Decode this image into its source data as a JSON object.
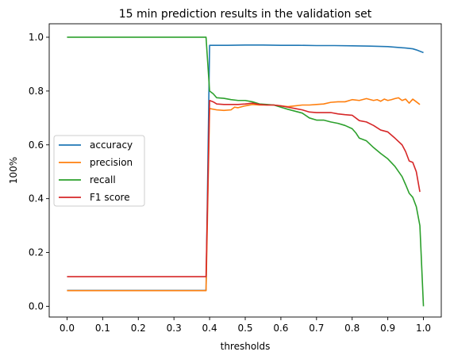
{
  "chart_data": {
    "type": "line",
    "title": "15 min prediction results in the validation set",
    "xlabel": "thresholds",
    "ylabel": "100%",
    "xlim": [
      -0.05,
      1.05
    ],
    "ylim": [
      -0.04,
      1.05
    ],
    "xticks": [
      0.0,
      0.1,
      0.2,
      0.3,
      0.4,
      0.5,
      0.6,
      0.7,
      0.8,
      0.9,
      1.0
    ],
    "xtick_labels": [
      "0.0",
      "0.1",
      "0.2",
      "0.3",
      "0.4",
      "0.5",
      "0.6",
      "0.7",
      "0.8",
      "0.9",
      "1.0"
    ],
    "yticks": [
      0.0,
      0.2,
      0.4,
      0.6,
      0.8,
      1.0
    ],
    "ytick_labels": [
      "0.0",
      "0.2",
      "0.4",
      "0.6",
      "0.8",
      "1.0"
    ],
    "grid": false,
    "legend_position": "center-left",
    "series": [
      {
        "name": "accuracy",
        "color": "#1f77b4",
        "points": [
          [
            0.0,
            0.059
          ],
          [
            0.39,
            0.059
          ],
          [
            0.4,
            0.97
          ],
          [
            0.45,
            0.97
          ],
          [
            0.5,
            0.971
          ],
          [
            0.55,
            0.971
          ],
          [
            0.6,
            0.97
          ],
          [
            0.65,
            0.97
          ],
          [
            0.7,
            0.969
          ],
          [
            0.75,
            0.969
          ],
          [
            0.8,
            0.968
          ],
          [
            0.85,
            0.967
          ],
          [
            0.9,
            0.965
          ],
          [
            0.95,
            0.96
          ],
          [
            0.97,
            0.957
          ],
          [
            0.98,
            0.953
          ],
          [
            1.0,
            0.943
          ]
        ]
      },
      {
        "name": "precision",
        "color": "#ff7f0e",
        "points": [
          [
            0.0,
            0.058
          ],
          [
            0.39,
            0.058
          ],
          [
            0.4,
            0.735
          ],
          [
            0.42,
            0.73
          ],
          [
            0.44,
            0.728
          ],
          [
            0.46,
            0.73
          ],
          [
            0.47,
            0.74
          ],
          [
            0.48,
            0.738
          ],
          [
            0.5,
            0.745
          ],
          [
            0.52,
            0.75
          ],
          [
            0.54,
            0.748
          ],
          [
            0.56,
            0.748
          ],
          [
            0.58,
            0.748
          ],
          [
            0.6,
            0.745
          ],
          [
            0.62,
            0.742
          ],
          [
            0.64,
            0.745
          ],
          [
            0.66,
            0.748
          ],
          [
            0.68,
            0.748
          ],
          [
            0.7,
            0.75
          ],
          [
            0.72,
            0.752
          ],
          [
            0.74,
            0.758
          ],
          [
            0.76,
            0.76
          ],
          [
            0.78,
            0.76
          ],
          [
            0.8,
            0.768
          ],
          [
            0.82,
            0.765
          ],
          [
            0.84,
            0.772
          ],
          [
            0.86,
            0.765
          ],
          [
            0.87,
            0.768
          ],
          [
            0.88,
            0.762
          ],
          [
            0.89,
            0.77
          ],
          [
            0.9,
            0.765
          ],
          [
            0.91,
            0.768
          ],
          [
            0.92,
            0.772
          ],
          [
            0.93,
            0.775
          ],
          [
            0.94,
            0.765
          ],
          [
            0.95,
            0.77
          ],
          [
            0.96,
            0.755
          ],
          [
            0.97,
            0.77
          ],
          [
            0.98,
            0.76
          ],
          [
            0.99,
            0.75
          ]
        ]
      },
      {
        "name": "recall",
        "color": "#2ca02c",
        "points": [
          [
            0.0,
            1.0
          ],
          [
            0.39,
            1.0
          ],
          [
            0.4,
            0.8
          ],
          [
            0.41,
            0.79
          ],
          [
            0.42,
            0.775
          ],
          [
            0.44,
            0.773
          ],
          [
            0.46,
            0.768
          ],
          [
            0.48,
            0.765
          ],
          [
            0.5,
            0.765
          ],
          [
            0.52,
            0.76
          ],
          [
            0.54,
            0.752
          ],
          [
            0.56,
            0.75
          ],
          [
            0.58,
            0.748
          ],
          [
            0.6,
            0.74
          ],
          [
            0.62,
            0.732
          ],
          [
            0.64,
            0.725
          ],
          [
            0.66,
            0.718
          ],
          [
            0.68,
            0.7
          ],
          [
            0.7,
            0.692
          ],
          [
            0.72,
            0.692
          ],
          [
            0.74,
            0.685
          ],
          [
            0.76,
            0.68
          ],
          [
            0.78,
            0.672
          ],
          [
            0.8,
            0.66
          ],
          [
            0.81,
            0.645
          ],
          [
            0.82,
            0.625
          ],
          [
            0.84,
            0.615
          ],
          [
            0.86,
            0.59
          ],
          [
            0.88,
            0.568
          ],
          [
            0.9,
            0.548
          ],
          [
            0.92,
            0.52
          ],
          [
            0.94,
            0.482
          ],
          [
            0.95,
            0.452
          ],
          [
            0.96,
            0.42
          ],
          [
            0.97,
            0.405
          ],
          [
            0.98,
            0.37
          ],
          [
            0.99,
            0.3
          ],
          [
            1.0,
            0.0
          ]
        ]
      },
      {
        "name": "F1 score",
        "color": "#d62728",
        "points": [
          [
            0.0,
            0.11
          ],
          [
            0.39,
            0.11
          ],
          [
            0.4,
            0.765
          ],
          [
            0.41,
            0.76
          ],
          [
            0.42,
            0.752
          ],
          [
            0.44,
            0.75
          ],
          [
            0.46,
            0.75
          ],
          [
            0.48,
            0.75
          ],
          [
            0.5,
            0.752
          ],
          [
            0.52,
            0.755
          ],
          [
            0.54,
            0.75
          ],
          [
            0.56,
            0.748
          ],
          [
            0.58,
            0.748
          ],
          [
            0.6,
            0.745
          ],
          [
            0.62,
            0.74
          ],
          [
            0.64,
            0.735
          ],
          [
            0.66,
            0.73
          ],
          [
            0.68,
            0.722
          ],
          [
            0.7,
            0.72
          ],
          [
            0.72,
            0.72
          ],
          [
            0.74,
            0.72
          ],
          [
            0.76,
            0.715
          ],
          [
            0.78,
            0.712
          ],
          [
            0.8,
            0.71
          ],
          [
            0.82,
            0.69
          ],
          [
            0.84,
            0.685
          ],
          [
            0.86,
            0.672
          ],
          [
            0.88,
            0.655
          ],
          [
            0.9,
            0.648
          ],
          [
            0.92,
            0.625
          ],
          [
            0.94,
            0.6
          ],
          [
            0.95,
            0.575
          ],
          [
            0.96,
            0.54
          ],
          [
            0.97,
            0.535
          ],
          [
            0.98,
            0.5
          ],
          [
            0.99,
            0.425
          ]
        ]
      }
    ]
  }
}
